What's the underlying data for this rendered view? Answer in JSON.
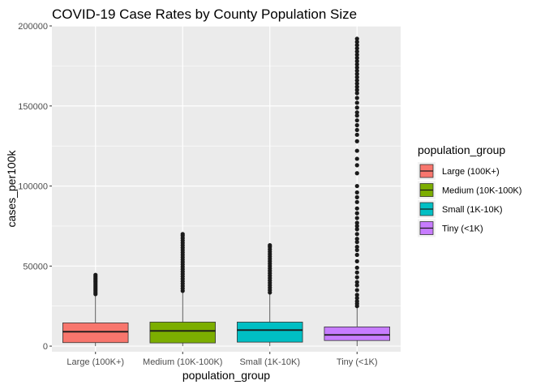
{
  "chart_data": {
    "type": "boxplot",
    "title": "COVID-19 Case Rates by County Population Size",
    "xlabel": "population_group",
    "ylabel": "cases_per100k",
    "ylim": [
      -3500,
      200000
    ],
    "yticks": [
      0,
      50000,
      100000,
      150000,
      200000
    ],
    "ytick_labels": [
      "0",
      "50000",
      "100000",
      "150000",
      "200000"
    ],
    "grid": true,
    "legend": {
      "title": "population_group",
      "position": "right"
    },
    "categories": [
      "Large (100K+)",
      "Medium (10K-100K)",
      "Small (1K-10K)",
      "Tiny (<1K)"
    ],
    "series": [
      {
        "name": "Large (100K+)",
        "color": "#F8766D",
        "lower_whisker": 0,
        "q1": 2200,
        "median": 9000,
        "q3": 14500,
        "upper_whisker": 32000,
        "outliers": [
          32500,
          33500,
          34500,
          35500,
          36500,
          37500,
          38500,
          39500,
          40500,
          41500,
          42500,
          43500,
          44500
        ]
      },
      {
        "name": "Medium (10K-100K)",
        "color": "#7CAE00",
        "lower_whisker": 0,
        "q1": 2000,
        "median": 9500,
        "q3": 15000,
        "upper_whisker": 34000,
        "outliers": [
          34500,
          36000,
          37500,
          39000,
          40500,
          42000,
          43500,
          45000,
          46500,
          48000,
          49500,
          51000,
          52500,
          54000,
          55500,
          57000,
          58500,
          60000,
          61500,
          63000,
          64500,
          66000,
          67500,
          69000,
          70000
        ]
      },
      {
        "name": "Small (1K-10K)",
        "color": "#00BFC4",
        "lower_whisker": 0,
        "q1": 2500,
        "median": 10000,
        "q3": 15000,
        "upper_whisker": 33000,
        "outliers": [
          33500,
          35000,
          36500,
          38000,
          39500,
          41000,
          42500,
          44000,
          45500,
          47000,
          48500,
          50000,
          51500,
          53000,
          54500,
          56000,
          57500,
          59000,
          60500,
          62000,
          63000
        ]
      },
      {
        "name": "Tiny (<1K)",
        "color": "#C77CFF",
        "lower_whisker": 0,
        "q1": 3500,
        "median": 7000,
        "q3": 12000,
        "upper_whisker": 24000,
        "outliers": [
          25000,
          26500,
          28000,
          30000,
          32000,
          35000,
          38000,
          40000,
          43000,
          46000,
          49000,
          53000,
          57000,
          60000,
          62000,
          65000,
          67000,
          70000,
          73000,
          75000,
          77000,
          80000,
          83000,
          86000,
          90000,
          93000,
          96000,
          100000,
          108000,
          113000,
          117000,
          122000,
          128000,
          132000,
          135000,
          138000,
          141000,
          144000,
          146000,
          149000,
          152000,
          155000,
          158000,
          160000,
          162000,
          164000,
          166000,
          168000,
          170000,
          172000,
          174000,
          176000,
          178000,
          180000,
          182000,
          184000,
          186000,
          188000,
          190000,
          192000
        ]
      }
    ]
  }
}
